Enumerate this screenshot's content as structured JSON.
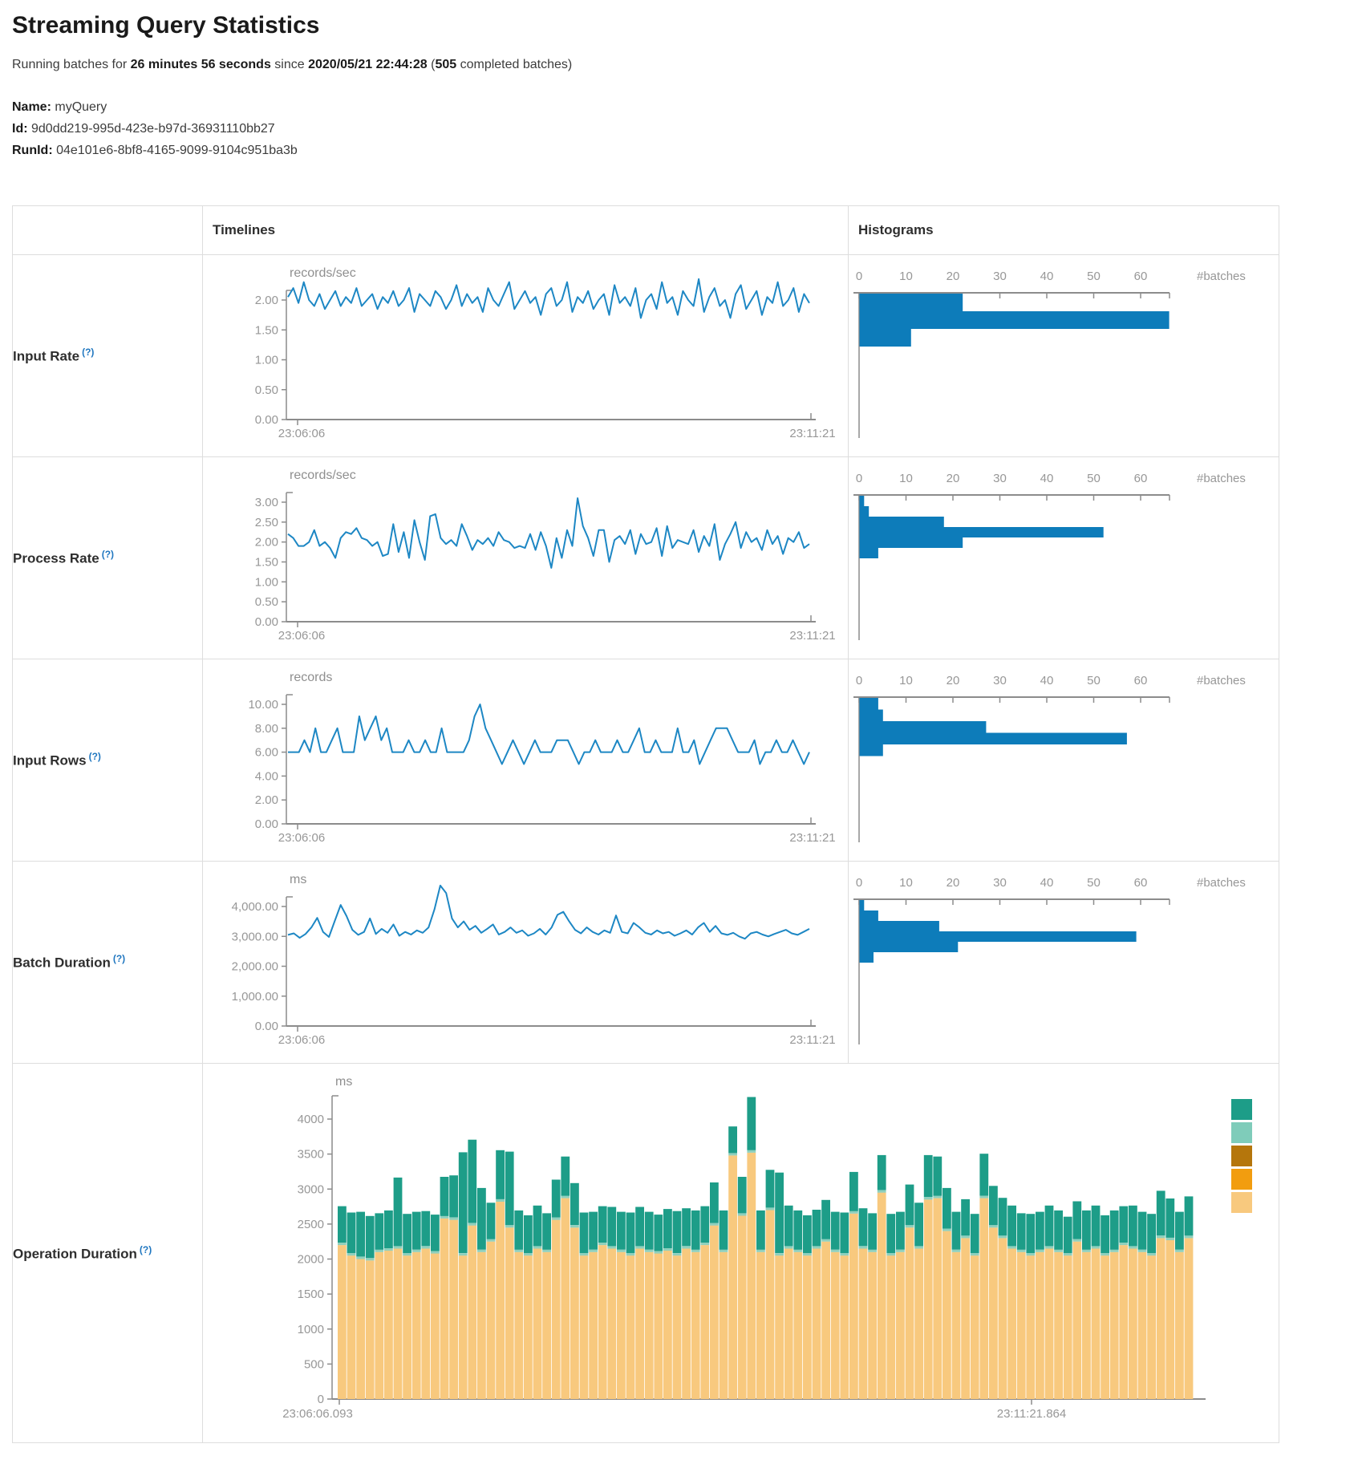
{
  "header": {
    "title": "Streaming Query Statistics",
    "running_prefix": "Running batches for ",
    "duration": "26 minutes 56 seconds",
    "since_text": " since ",
    "start_time": "2020/05/21 22:44:28",
    "paren_open": " (",
    "completed_batches": "505",
    "completed_suffix": " completed batches",
    "paren_close": ")"
  },
  "meta": {
    "name_label": "Name:",
    "name": "myQuery",
    "id_label": "Id:",
    "id": "9d0dd219-995d-423e-b97d-36931110bb27",
    "runid_label": "RunId:",
    "runid": "04e101e6-8bf8-4165-9099-9104c951ba3b"
  },
  "table": {
    "col_timelines": "Timelines",
    "col_histograms": "Histograms",
    "rows": [
      {
        "label": "Input Rate",
        "help": "(?)"
      },
      {
        "label": "Process Rate",
        "help": "(?)"
      },
      {
        "label": "Input Rows",
        "help": "(?)"
      },
      {
        "label": "Batch Duration",
        "help": "(?)"
      },
      {
        "label": "Operation Duration",
        "help": "(?)"
      }
    ]
  },
  "colors": {
    "line_blue": "#1d87c4",
    "hist_bar_blue": "#0d7cba",
    "axis_gray": "#8c8c8c",
    "label_gray": "#979797"
  },
  "chart_data": [
    {
      "id": "input-rate",
      "type": "line",
      "unit": "records/sec",
      "ytick_labels": [
        "0.00",
        "0.50",
        "1.00",
        "1.50",
        "2.00"
      ],
      "ymax_tick": 2,
      "x_start_label": "23:06:06",
      "x_end_label": "23:11:21",
      "line_color": "#1d87c4",
      "values": [
        2.05,
        2.2,
        1.95,
        2.3,
        2.0,
        1.9,
        2.1,
        1.85,
        2.0,
        2.15,
        1.9,
        2.05,
        1.95,
        2.2,
        1.9,
        2.0,
        2.1,
        1.85,
        2.05,
        1.95,
        2.15,
        1.9,
        2.0,
        2.2,
        1.8,
        2.1,
        2.0,
        1.9,
        2.15,
        2.05,
        1.85,
        2.0,
        2.25,
        1.9,
        2.1,
        1.95,
        2.05,
        1.8,
        2.2,
        2.0,
        1.9,
        2.1,
        2.3,
        1.85,
        2.0,
        2.15,
        1.95,
        2.05,
        1.75,
        2.1,
        2.2,
        1.9,
        2.0,
        2.3,
        1.8,
        2.05,
        1.95,
        2.15,
        1.85,
        2.0,
        2.1,
        1.75,
        2.25,
        1.95,
        2.05,
        1.9,
        2.2,
        1.7,
        2.0,
        2.1,
        1.85,
        2.3,
        1.95,
        2.05,
        1.75,
        2.15,
        2.0,
        1.9,
        2.35,
        1.8,
        2.05,
        2.2,
        1.9,
        2.0,
        1.7,
        2.1,
        2.25,
        1.85,
        2.0,
        2.15,
        1.75,
        2.05,
        1.95,
        2.3,
        1.9,
        2.0,
        2.2,
        1.8,
        2.1,
        1.95
      ],
      "histogram": {
        "tick_labels": [
          "0",
          "10",
          "20",
          "30",
          "40",
          "50",
          "60"
        ],
        "unit_label": "#batches",
        "bar_color": "#0d7cba",
        "values": [
          22,
          66,
          11
        ]
      }
    },
    {
      "id": "process-rate",
      "type": "line",
      "unit": "records/sec",
      "ytick_labels": [
        "0.00",
        "0.50",
        "1.00",
        "1.50",
        "2.00",
        "2.50",
        "3.00"
      ],
      "ymax_tick": 3,
      "x_start_label": "23:06:06",
      "x_end_label": "23:11:21",
      "line_color": "#1d87c4",
      "values": [
        2.2,
        2.1,
        1.9,
        1.9,
        2.0,
        2.3,
        1.9,
        2.0,
        1.85,
        1.6,
        2.1,
        2.25,
        2.2,
        2.35,
        2.1,
        2.05,
        1.9,
        2.0,
        1.65,
        1.7,
        2.45,
        1.75,
        2.25,
        1.6,
        2.55,
        2.0,
        1.55,
        2.65,
        2.7,
        2.1,
        1.95,
        2.05,
        1.9,
        2.45,
        2.15,
        1.8,
        2.05,
        1.95,
        2.1,
        1.9,
        2.25,
        2.05,
        2.0,
        1.85,
        1.9,
        1.85,
        2.2,
        1.8,
        2.25,
        1.9,
        1.35,
        2.1,
        1.6,
        2.3,
        1.9,
        3.1,
        2.4,
        2.1,
        1.65,
        2.3,
        2.3,
        1.5,
        2.05,
        2.15,
        1.95,
        2.3,
        1.7,
        2.2,
        1.95,
        2.0,
        2.35,
        1.65,
        2.4,
        1.85,
        2.05,
        2.0,
        1.95,
        2.3,
        1.75,
        2.15,
        1.9,
        2.45,
        1.55,
        1.95,
        2.2,
        2.5,
        1.85,
        2.25,
        2.0,
        2.1,
        1.8,
        2.3,
        1.95,
        2.15,
        1.7,
        2.1,
        2.0,
        2.25,
        1.85,
        1.95
      ],
      "histogram": {
        "tick_labels": [
          "0",
          "10",
          "20",
          "30",
          "40",
          "50",
          "60"
        ],
        "unit_label": "#batches",
        "bar_color": "#0d7cba",
        "values": [
          1,
          2,
          18,
          52,
          22,
          4
        ]
      }
    },
    {
      "id": "input-rows",
      "type": "line",
      "unit": "records",
      "ytick_labels": [
        "0.00",
        "2.00",
        "4.00",
        "6.00",
        "8.00",
        "10.00"
      ],
      "ymax_tick": 10,
      "x_start_label": "23:06:06",
      "x_end_label": "23:11:21",
      "line_color": "#1d87c4",
      "values": [
        6,
        6,
        6,
        7,
        6,
        8,
        6,
        6,
        7,
        8,
        6,
        6,
        6,
        9,
        7,
        8,
        9,
        7,
        8,
        6,
        6,
        6,
        7,
        6,
        6,
        7,
        6,
        6,
        8,
        6,
        6,
        6,
        6,
        7,
        9,
        10,
        8,
        7,
        6,
        5,
        6,
        7,
        6,
        5,
        6,
        7,
        6,
        6,
        6,
        7,
        7,
        7,
        6,
        5,
        6,
        6,
        7,
        6,
        6,
        6,
        7,
        6,
        6,
        7,
        8,
        6,
        6,
        7,
        6,
        6,
        6,
        8,
        6,
        6,
        7,
        5,
        6,
        7,
        8,
        8,
        8,
        7,
        6,
        6,
        6,
        7,
        5,
        6,
        6,
        7,
        6,
        6,
        7,
        6,
        5,
        6
      ],
      "histogram": {
        "tick_labels": [
          "0",
          "10",
          "20",
          "30",
          "40",
          "50",
          "60"
        ],
        "unit_label": "#batches",
        "bar_color": "#0d7cba",
        "values": [
          4,
          5,
          27,
          57,
          5
        ]
      }
    },
    {
      "id": "batch-duration",
      "type": "line",
      "unit": "ms",
      "ytick_labels": [
        "0.00",
        "1,000.00",
        "2,000.00",
        "3,000.00",
        "4,000.00"
      ],
      "ymax_tick": 4000,
      "x_start_label": "23:06:06",
      "x_end_label": "23:11:21",
      "line_color": "#1d87c4",
      "values": [
        3050,
        3100,
        2950,
        3080,
        3300,
        3620,
        3150,
        2980,
        3520,
        4050,
        3680,
        3220,
        3050,
        3150,
        3600,
        3080,
        3250,
        3120,
        3400,
        3020,
        3150,
        3060,
        3200,
        3120,
        3300,
        3900,
        4700,
        4450,
        3600,
        3300,
        3500,
        3220,
        3350,
        3120,
        3250,
        3400,
        3060,
        3150,
        3300,
        3120,
        3200,
        3020,
        3100,
        3250,
        3060,
        3300,
        3720,
        3820,
        3500,
        3220,
        3100,
        3300,
        3150,
        3060,
        3200,
        3120,
        3700,
        3150,
        3100,
        3450,
        3300,
        3120,
        3060,
        3200,
        3100,
        3150,
        3020,
        3100,
        3200,
        3060,
        3300,
        3450,
        3150,
        3350,
        3100,
        3050,
        3120,
        3000,
        2920,
        3100,
        3150,
        3060,
        3000,
        3080,
        3150,
        3220,
        3100,
        3050,
        3150,
        3250
      ],
      "histogram": {
        "tick_labels": [
          "0",
          "10",
          "20",
          "30",
          "40",
          "50",
          "60"
        ],
        "unit_label": "#batches",
        "bar_color": "#0d7cba",
        "values": [
          1,
          4,
          17,
          59,
          21,
          3
        ]
      }
    },
    {
      "id": "operation-duration",
      "type": "stacked-bar",
      "unit": "ms",
      "ytick_labels": [
        "0",
        "500",
        "1000",
        "1500",
        "2000",
        "2500",
        "3000",
        "3500",
        "4000"
      ],
      "ymax_tick": 4000,
      "x_start_label": "23:06:06.093",
      "x_end_label": "23:11:21.864",
      "legend_colors": [
        "#1d9d88",
        "#7fccba",
        "#b5760c",
        "#f29d0f",
        "#f8c97e"
      ],
      "series_colors": {
        "base": "#f8c97e",
        "mid": "#8fd0bd",
        "top": "#1d9d88"
      },
      "mid_value": 35,
      "base_values": [
        2200,
        2050,
        2000,
        1980,
        2100,
        2120,
        2150,
        2050,
        2100,
        2150,
        2080,
        2580,
        2560,
        2050,
        2480,
        2100,
        2250,
        2820,
        2450,
        2100,
        2050,
        2150,
        2100,
        2560,
        2870,
        2450,
        2050,
        2100,
        2200,
        2150,
        2100,
        2050,
        2150,
        2100,
        2080,
        2120,
        2050,
        2150,
        2100,
        2200,
        2480,
        2100,
        3480,
        2620,
        3520,
        2100,
        2700,
        2050,
        2150,
        2100,
        2050,
        2150,
        2250,
        2100,
        2050,
        2650,
        2150,
        2100,
        2950,
        2050,
        2100,
        2450,
        2150,
        2850,
        2870,
        2400,
        2100,
        2300,
        2050,
        2870,
        2450,
        2300,
        2150,
        2100,
        2050,
        2100,
        2150,
        2100,
        2050,
        2250,
        2100,
        2150,
        2050,
        2100,
        2200,
        2150,
        2100,
        2050,
        2300,
        2270,
        2100,
        2300
      ],
      "top_values": [
        520,
        580,
        640,
        600,
        520,
        540,
        980,
        560,
        540,
        500,
        520,
        560,
        600,
        1440,
        1190,
        880,
        520,
        700,
        1050,
        560,
        540,
        580,
        520,
        540,
        560,
        600,
        580,
        540,
        520,
        560,
        540,
        580,
        560,
        540,
        520,
        560,
        600,
        540,
        560,
        520,
        580,
        560,
        380,
        520,
        760,
        560,
        540,
        1150,
        580,
        560,
        540,
        520,
        560,
        540,
        580,
        560,
        540,
        520,
        500,
        560,
        540,
        580,
        620,
        600,
        560,
        580,
        540,
        520,
        560,
        600,
        560,
        540,
        580,
        520,
        560,
        540,
        580,
        560,
        520,
        540,
        560,
        580,
        540,
        560,
        520,
        580,
        540,
        560,
        640,
        560,
        540,
        560
      ]
    }
  ]
}
